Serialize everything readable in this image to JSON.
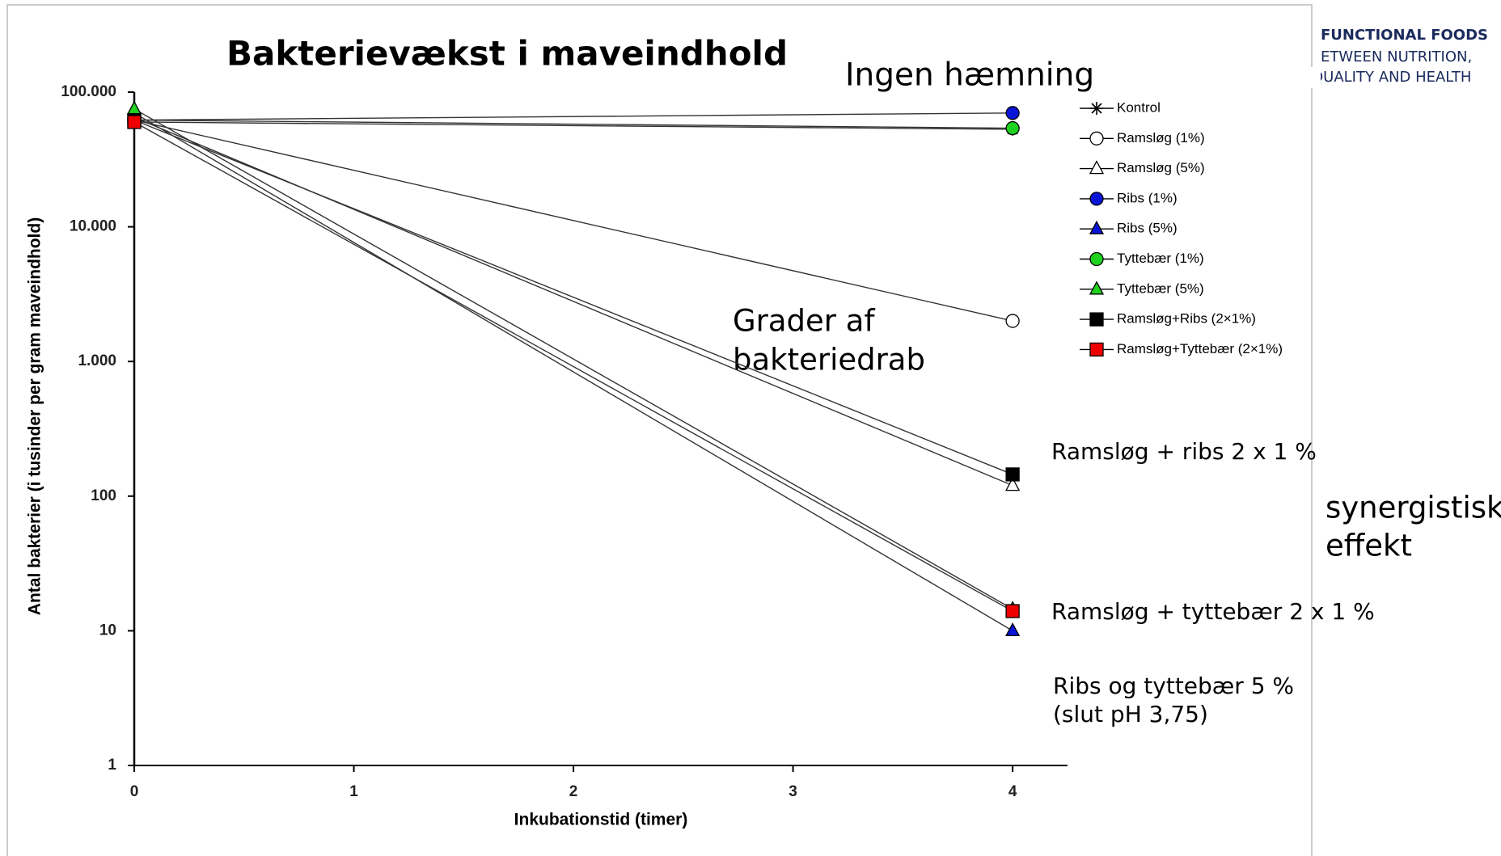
{
  "chart_data": {
    "type": "line",
    "title": "Bakterievækst i maveindhold",
    "header": [
      "FUNCTIONAL FOODS",
      "ETWEEN  NUTRITION,",
      "QUALITY AND HEALTH"
    ],
    "x_label": "Inkubationstid (timer)",
    "y_label": "Antal bakterier (i tusinder per gram maveindhold)",
    "x": [
      0,
      4
    ],
    "xlim": [
      0,
      4.25
    ],
    "xticks": [
      0,
      1,
      2,
      3,
      4
    ],
    "ylim": [
      1,
      100000
    ],
    "log_y": true,
    "yticks": [
      {
        "value": 100000,
        "label": "100.000"
      },
      {
        "value": 10000,
        "label": "10.000"
      },
      {
        "value": 1000,
        "label": "1.000"
      },
      100,
      10,
      1
    ],
    "series": [
      {
        "name": "Kontrol",
        "marker": "star",
        "color": "#000000",
        "values": [
          60000,
          53000
        ]
      },
      {
        "name": "Ramsløg (1%)",
        "marker": "circle",
        "color": "#ffffff",
        "values": [
          62000,
          2000
        ]
      },
      {
        "name": "Ramsløg (5%)",
        "marker": "triangle",
        "color": "#ffffff",
        "values": [
          65000,
          120
        ]
      },
      {
        "name": "Ribs (1%)",
        "marker": "circle",
        "color": "#0a14d8",
        "values": [
          62000,
          70000
        ]
      },
      {
        "name": "Ribs (5%)",
        "marker": "triangle",
        "color": "#0a14d8",
        "values": [
          70000,
          10
        ]
      },
      {
        "name": "Tyttebær (1%)",
        "marker": "circle",
        "color": "#1ed21e",
        "values": [
          62000,
          54000
        ]
      },
      {
        "name": "Tyttebær (5%)",
        "marker": "triangle",
        "color": "#1ed21e",
        "values": [
          75000,
          14.5
        ]
      },
      {
        "name": "Ramsløg+Ribs (2×1%)",
        "marker": "square",
        "color": "#000000",
        "values": [
          62000,
          145
        ]
      },
      {
        "name": "Ramsløg+Tyttebær (2×1%)",
        "marker": "square",
        "color": "#ee0000",
        "values": [
          60000,
          14
        ]
      }
    ],
    "annotations": [
      "Ingen hæmning",
      "Grader af",
      "bakteriedrab",
      "Ramsløg + ribs 2 x 1 %",
      "synergistisk",
      "effekt",
      "Ramsløg + tyttebær 2 x 1 %",
      "Ribs og tyttebær 5 %",
      "(slut pH 3,75)"
    ]
  }
}
